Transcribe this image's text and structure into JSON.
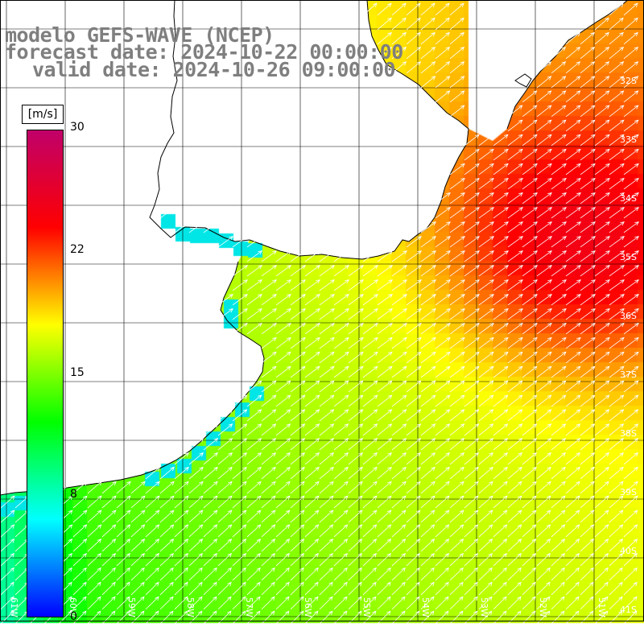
{
  "title": {
    "line1": "modelo GEFS-WAVE (NCEP)",
    "line2": "forecast date: 2024-10-22 00:00:00",
    "line3": "valid date: 2024-10-26 09:00:00"
  },
  "colorbar": {
    "unit": "[m/s]",
    "ticks": [
      "30",
      "22",
      "15",
      "8",
      "0"
    ],
    "range": [
      0,
      30
    ],
    "colors": [
      "#0000ff",
      "#00ffff",
      "#00ff00",
      "#ffff00",
      "#ff0000",
      "#c0006a"
    ]
  },
  "lat_labels": [
    "32S",
    "33S",
    "34S",
    "35S",
    "36S",
    "37S",
    "38S",
    "39S",
    "40S",
    "41S"
  ],
  "lon_labels": [
    "61W",
    "60W",
    "59W",
    "58W",
    "57W",
    "56W",
    "55W",
    "54W",
    "53W",
    "52W",
    "51W"
  ],
  "map": {
    "lon_range": [
      -62,
      -51
    ],
    "lat_range": [
      -41,
      -30
    ],
    "land_color": "#ffffff",
    "coast_color": "#000000",
    "grid_color": "#000000",
    "arrow_color": "#ffffff",
    "wind_direction": "from southwest"
  }
}
